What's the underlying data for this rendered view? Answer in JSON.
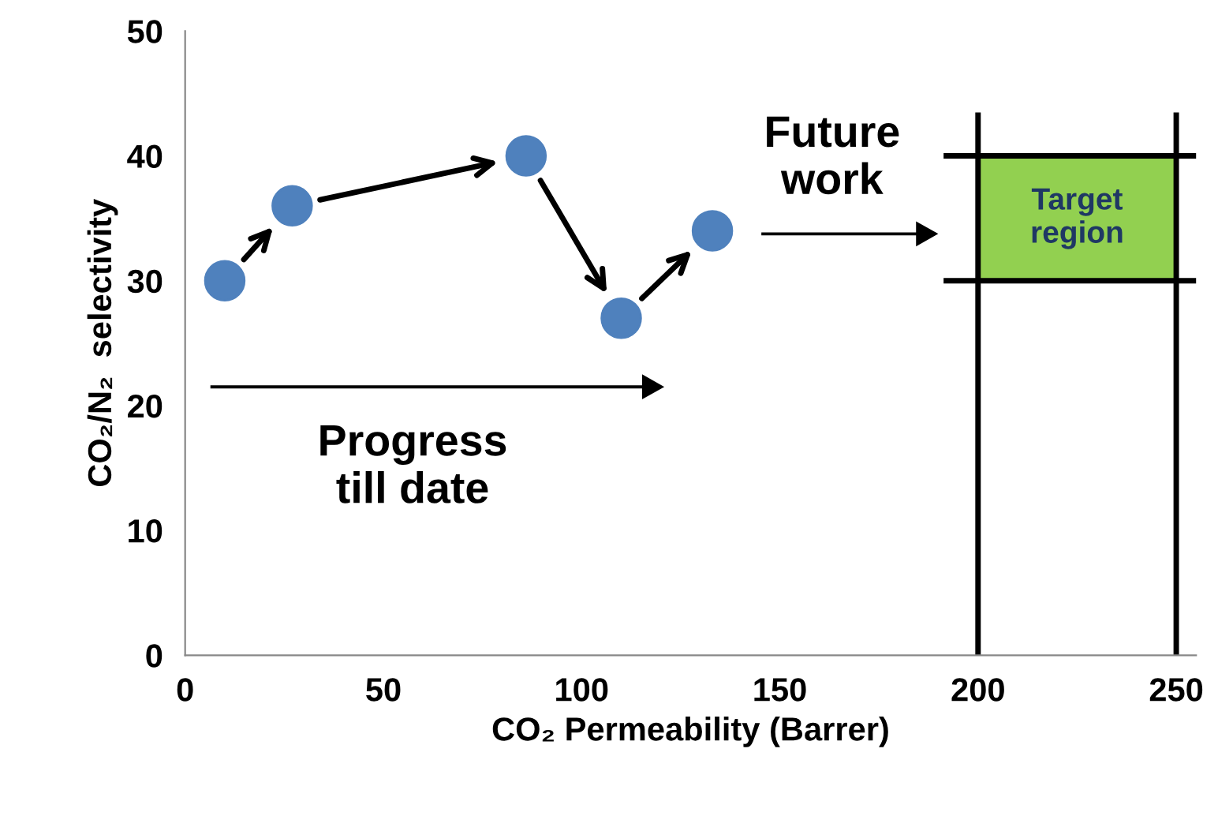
{
  "chart_data": {
    "type": "scatter",
    "xlabel": "CO₂ Permeability (Barrer)",
    "ylabel": "CO₂/N₂  selectivity",
    "x": [
      10,
      27,
      86,
      110,
      133
    ],
    "values": [
      30,
      36,
      40,
      27,
      34
    ],
    "color": "#4f81bd",
    "marker": "circle",
    "xlim": [
      0,
      255
    ],
    "xticks": [
      0,
      50,
      100,
      150,
      200,
      250
    ],
    "ylim": [
      0,
      50
    ],
    "yticks": [
      0,
      10,
      20,
      30,
      40,
      50
    ],
    "grid": false,
    "legend": false,
    "ref_lines": [
      {
        "axis": "x",
        "value": 200,
        "color": "#000000"
      },
      {
        "axis": "x",
        "value": 250,
        "color": "#000000"
      },
      {
        "axis": "y",
        "value": 30,
        "color": "#000000"
      },
      {
        "axis": "y",
        "value": 40,
        "color": "#000000"
      }
    ],
    "bands": [
      {
        "axis": "x",
        "from": 200,
        "to": 250,
        "label": "Target\nregion",
        "color": "#92d050"
      }
    ],
    "annotations": [
      "Progress\ntill date",
      "Future\nwork"
    ]
  }
}
